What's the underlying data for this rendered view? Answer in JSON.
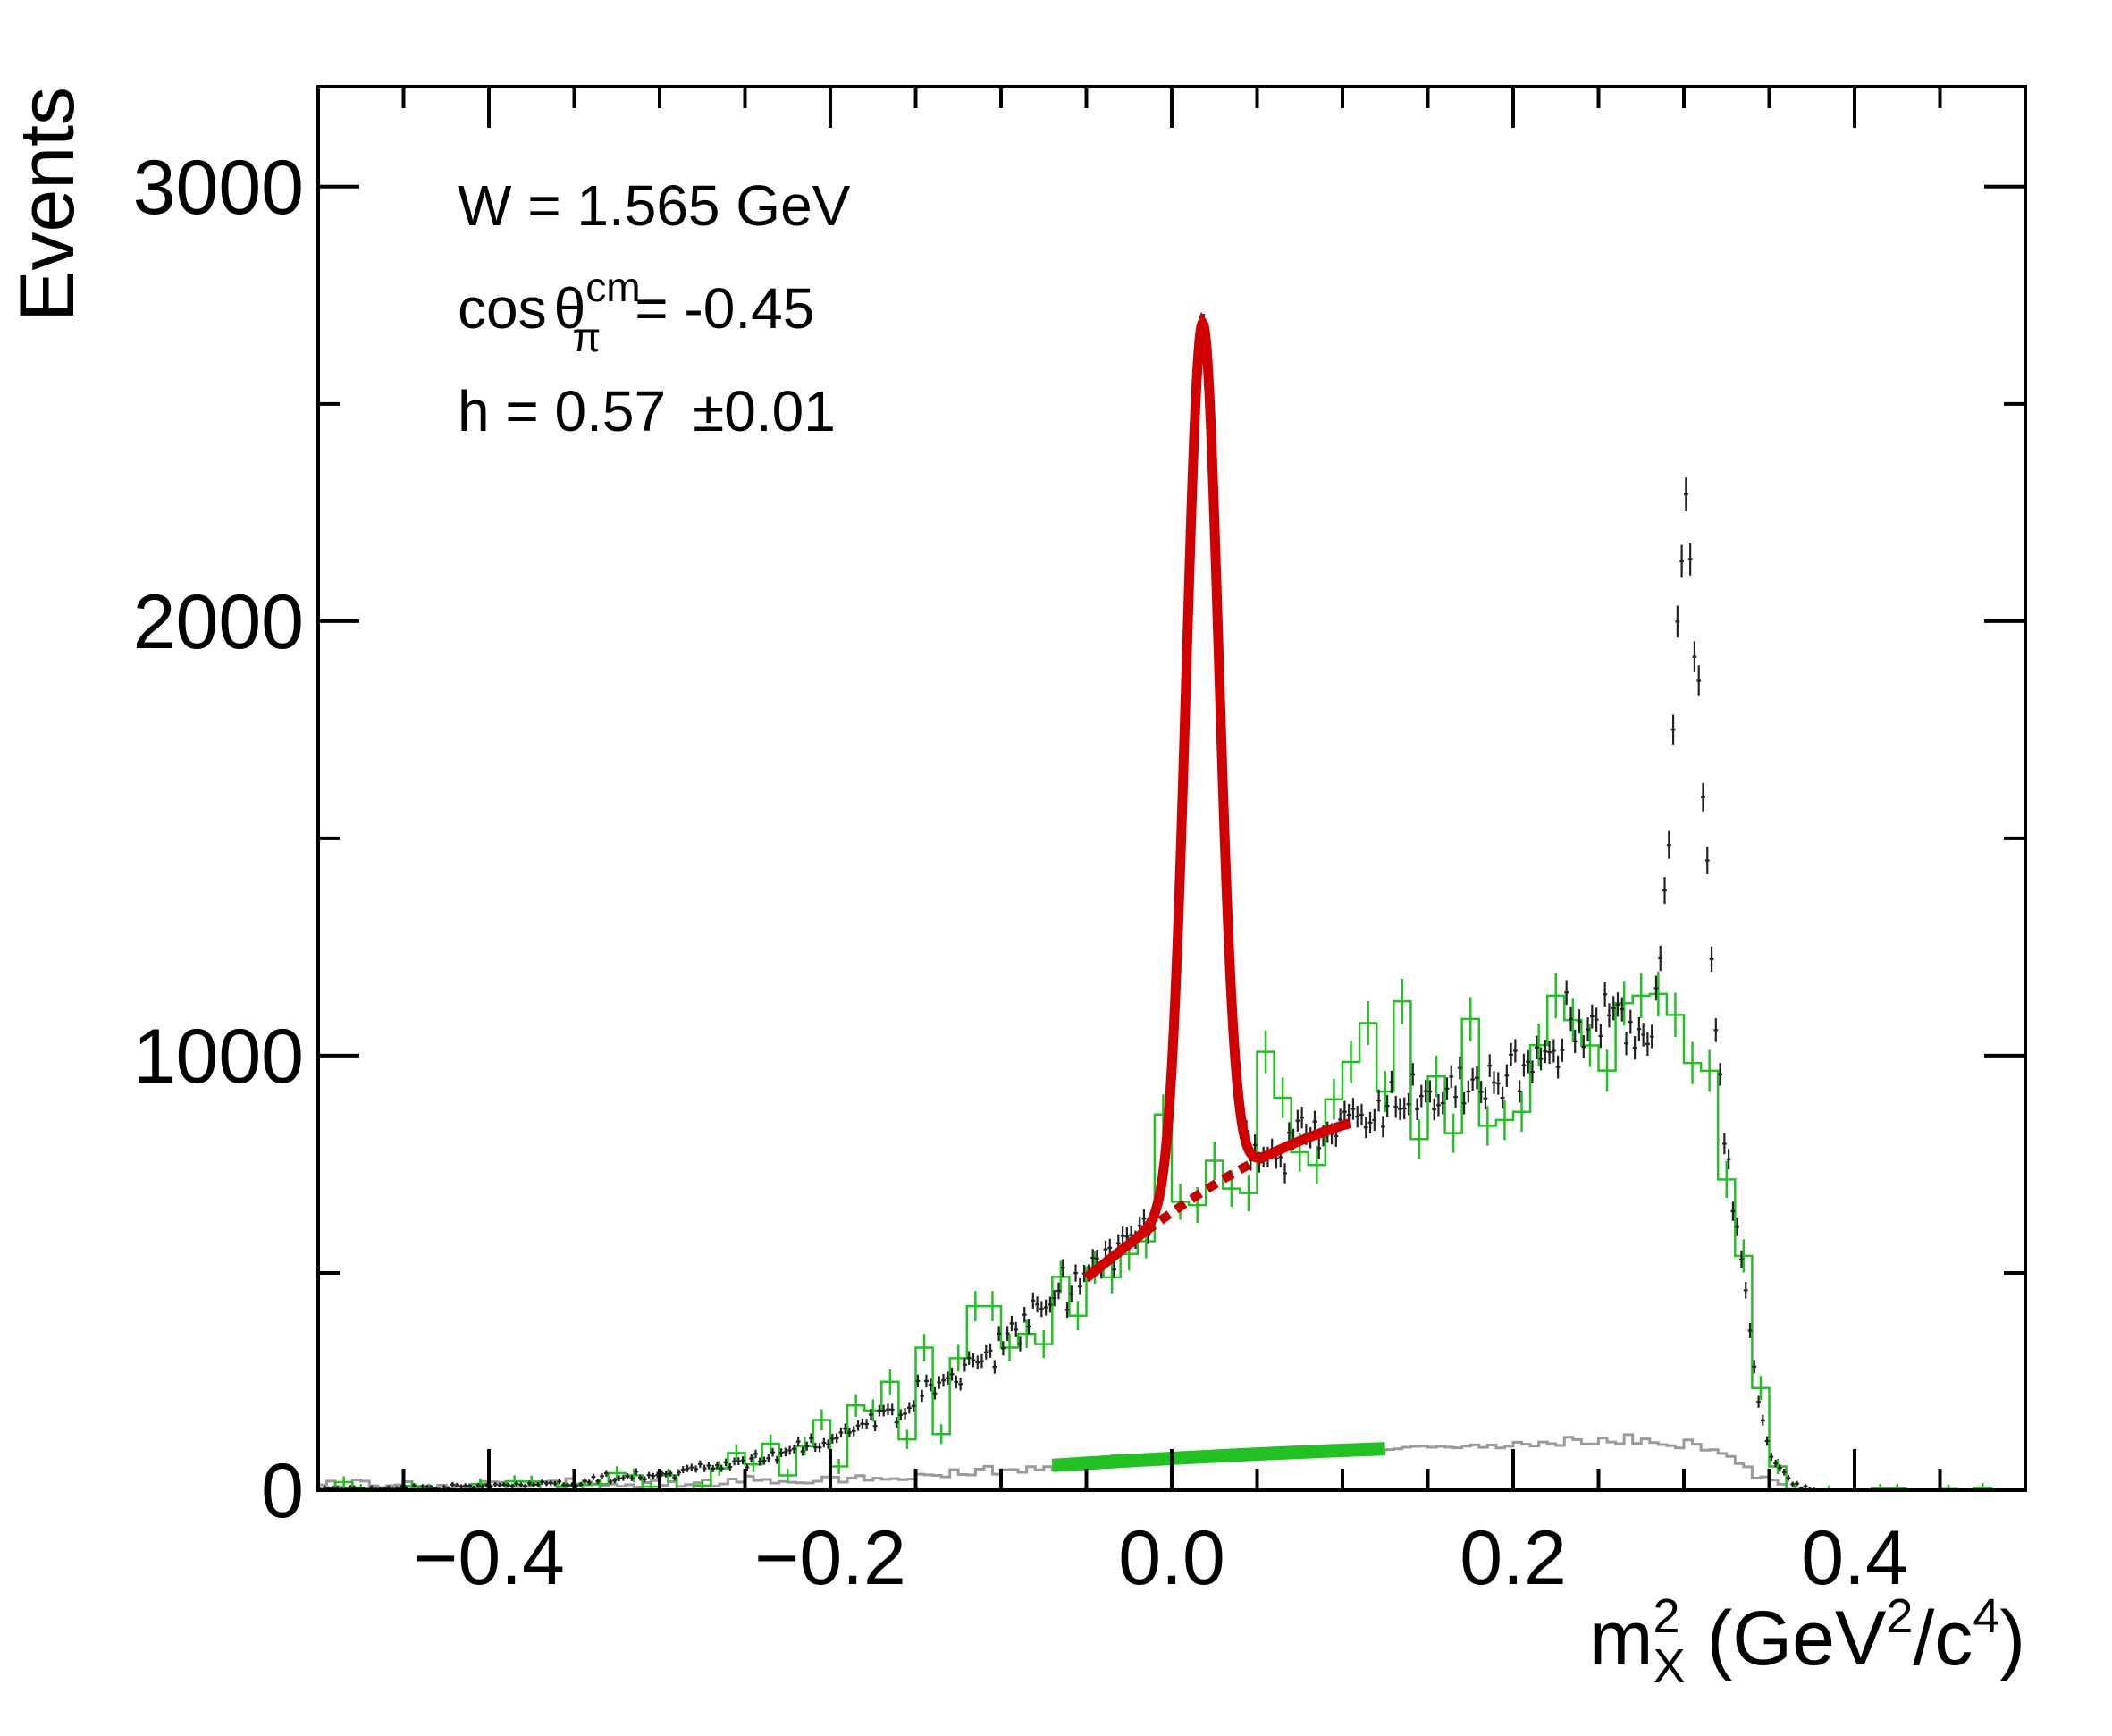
{
  "chart_data": {
    "type": "line",
    "xlabel_main": "m",
    "xlabel_sup": "2",
    "xlabel_sub": "X",
    "xlabel_units_open": "(GeV",
    "xlabel_units_sup1": "2",
    "xlabel_units_mid": "/c",
    "xlabel_units_sup2": "4",
    "xlabel_units_close": ")",
    "ylabel": "Events",
    "xlim": [
      -0.5,
      0.5
    ],
    "ylim": [
      0,
      3230
    ],
    "x_ticks": [
      -0.4,
      -0.2,
      0.0,
      0.2,
      0.4
    ],
    "x_tick_labels": [
      "−0.4",
      "−0.2",
      "0.0",
      "0.2",
      "0.4"
    ],
    "y_ticks": [
      0,
      1000,
      2000,
      3000
    ],
    "y_tick_labels": [
      "0",
      "1000",
      "2000",
      "3000"
    ],
    "annotations": {
      "w_line": "W = 1.565 GeV",
      "cos_prefix": "cos",
      "theta": "θ",
      "cos_sup": "cm",
      "cos_sub": "π",
      "cos_value": "= -0.45",
      "h_value": "h = 0.57",
      "h_error": "±0.01"
    },
    "data_shape": {
      "sigmoid_amp": 960,
      "sigmoid_center": -0.055,
      "sigmoid_width": 0.075,
      "bump_amp": 130,
      "bump_center": 0.25,
      "bump_width": 0.04,
      "cutoff_center": 0.335,
      "cutoff_width": 0.007,
      "peak1_amp": 1990,
      "peak1_center": 0.018,
      "peak1_sigma": 0.0095,
      "peak2_amp": 1240,
      "peak2_center": 0.302,
      "peak2_sigma": 0.0085,
      "data_bin_width": 0.0025,
      "sim_bin_width": 0.01,
      "gray_scale": 0.095
    },
    "series": [
      {
        "name": "data",
        "style": "black points with error bars",
        "color": "#222222"
      },
      {
        "name": "simulation",
        "style": "green histogram with error bars",
        "color": "#22c022"
      },
      {
        "name": "background",
        "style": "gray histogram",
        "color": "#999999"
      },
      {
        "name": "fit",
        "style": "red solid curve (Gaussian + background)",
        "color": "#cc0000",
        "x_range": [
          -0.05,
          0.105
        ]
      },
      {
        "name": "fit-background",
        "style": "red dotted curve",
        "color": "#cc0000",
        "x_range": [
          -0.05,
          0.105
        ]
      },
      {
        "name": "band",
        "style": "thick green band",
        "color": "#22c022",
        "x_range": [
          -0.07,
          0.125
        ]
      }
    ]
  }
}
